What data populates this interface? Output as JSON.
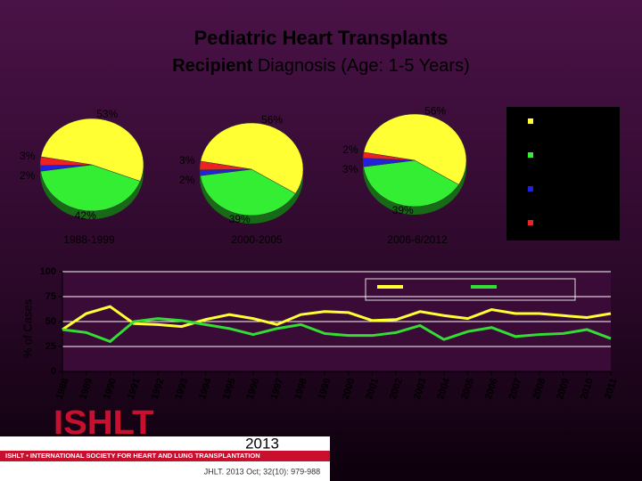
{
  "header": {
    "title_line1": "Pediatric Heart Transplants",
    "title_bold": "Recipient",
    "title_rest": "Diagnosis (Age: 1-5 Years)"
  },
  "chart_data": [
    {
      "type": "pie",
      "title": "1988-1999",
      "values": [
        53,
        42,
        2,
        3
      ],
      "value_labels": [
        "53%",
        "42%",
        "2%",
        "3%"
      ],
      "colors": [
        "#ffff33",
        "#33ee33",
        "#2222dd",
        "#ee2222"
      ]
    },
    {
      "type": "pie",
      "title": "2000-2005",
      "values": [
        56,
        39,
        2,
        3
      ],
      "value_labels": [
        "56%",
        "39%",
        "2%",
        "3%"
      ],
      "colors": [
        "#ffff33",
        "#33ee33",
        "#2222dd",
        "#ee2222"
      ]
    },
    {
      "type": "pie",
      "title": "2006-6/2012",
      "values": [
        56,
        39,
        3,
        2
      ],
      "value_labels": [
        "56%",
        "39%",
        "3%",
        "2%"
      ],
      "colors": [
        "#ffff33",
        "#33ee33",
        "#2222dd",
        "#ee2222"
      ]
    },
    {
      "type": "line",
      "ylabel": "% of Cases",
      "x": [
        1988,
        1989,
        1990,
        1991,
        1992,
        1993,
        1994,
        1995,
        1996,
        1997,
        1998,
        1999,
        2000,
        2001,
        2002,
        2003,
        2004,
        2005,
        2006,
        2007,
        2008,
        2009,
        2010,
        2011
      ],
      "xlim": [
        1988,
        2011
      ],
      "xticks": [
        1988,
        1989,
        1990,
        1991,
        1992,
        1993,
        1994,
        1995,
        1996,
        1997,
        1998,
        1999,
        2000,
        2001,
        2002,
        2003,
        2004,
        2005,
        2006,
        2007,
        2008,
        2009,
        2010,
        2011
      ],
      "ylim": [
        0,
        100
      ],
      "yticks": [
        0,
        25,
        50,
        75,
        100
      ],
      "grid": true,
      "series": [
        {
          "color": "#ffff33",
          "values": [
            42,
            58,
            65,
            48,
            47,
            45,
            52,
            57,
            53,
            47,
            57,
            60,
            59,
            51,
            52,
            60,
            56,
            53,
            62,
            58,
            58,
            56,
            54,
            58
          ]
        },
        {
          "color": "#33dd33",
          "values": [
            42,
            39,
            30,
            50,
            53,
            51,
            47,
            43,
            37,
            43,
            47,
            38,
            36,
            36,
            39,
            46,
            32,
            40,
            44,
            35,
            37,
            38,
            42,
            33
          ]
        }
      ]
    }
  ],
  "footer": {
    "logo": "ISHLT",
    "society": "ISHLT • INTERNATIONAL SOCIETY FOR HEART AND LUNG TRANSPLANTATION",
    "year": "2013",
    "citation": "JHLT. 2013 Oct; 32(10): 979-988"
  }
}
